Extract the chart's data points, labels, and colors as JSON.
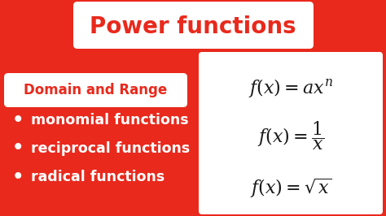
{
  "bg_color": "#E8291C",
  "title": "Power functions",
  "title_color": "#E8291C",
  "title_bg": "#FFFFFF",
  "title_fontsize": 20,
  "domain_label": "Domain and Range",
  "domain_label_color": "#E8291C",
  "domain_label_bg": "#FFFFFF",
  "domain_label_fontsize": 12,
  "bullets": [
    "monomial functions",
    "reciprocal functions",
    "radical functions"
  ],
  "bullet_color": "#FFFFFF",
  "bullet_fontsize": 12.5,
  "formula_box_color": "#FFFFFF",
  "formula_color": "#1a1a1a",
  "formula_fontsize": 14
}
